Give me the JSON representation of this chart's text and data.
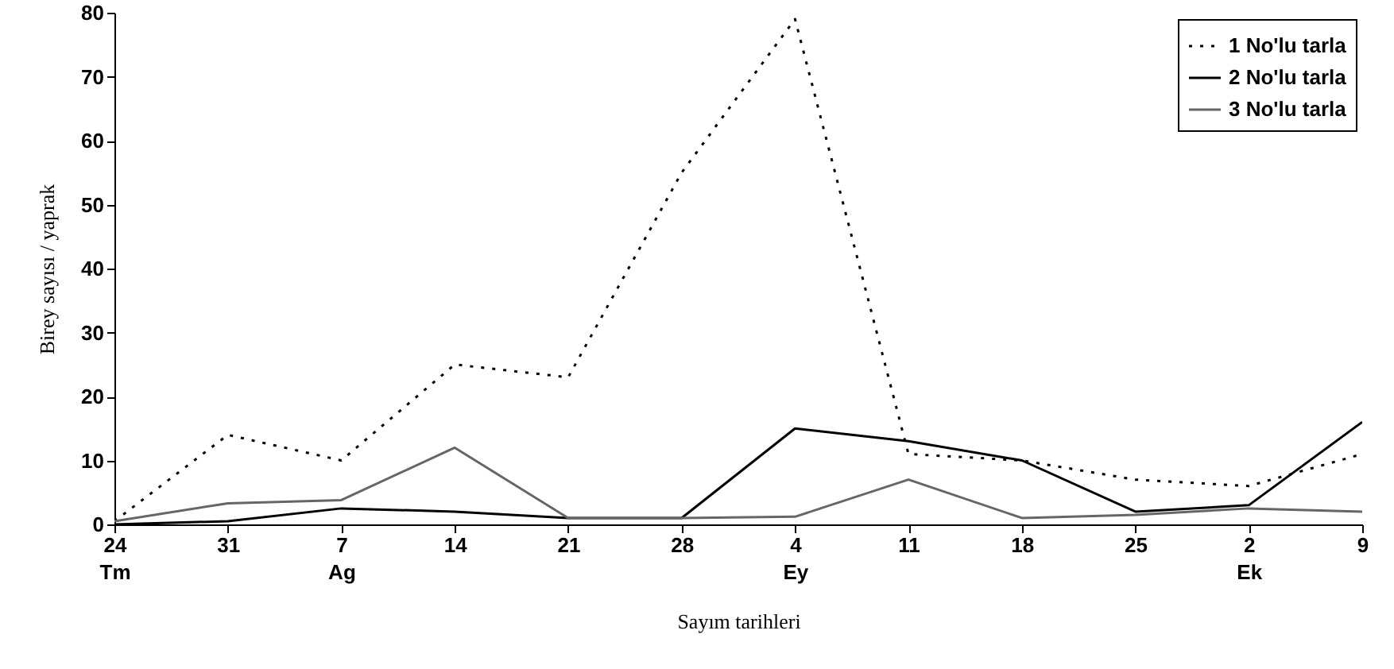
{
  "chart_data": {
    "type": "line",
    "xlabel": "Sayım tarihleri",
    "ylabel": "Birey sayısı / yaprak",
    "categories": [
      "24\nTm",
      "31",
      "7\nAg",
      "14",
      "21",
      "28",
      "4\nEy",
      "11",
      "18",
      "25",
      "2\nEk",
      "9"
    ],
    "series": [
      {
        "name": "1 No'lu tarla",
        "color": "#000000",
        "line_style": "dotted",
        "values": [
          0.5,
          14,
          10,
          25,
          23,
          55,
          79,
          11,
          10,
          7,
          6,
          11
        ]
      },
      {
        "name": "2 No'lu tarla",
        "color": "#000000",
        "line_style": "solid",
        "values": [
          0,
          0.5,
          2.5,
          2,
          1,
          1,
          15,
          13,
          10,
          2,
          3,
          16
        ]
      },
      {
        "name": "3 No'lu tarla",
        "color": "#666666",
        "line_style": "solid",
        "values": [
          0.5,
          3.3,
          3.8,
          12,
          1,
          1,
          1.2,
          7,
          1,
          1.5,
          2.5,
          2
        ]
      }
    ],
    "ylim": [
      0,
      80
    ],
    "yticks": [
      0,
      10,
      20,
      30,
      40,
      50,
      60,
      70,
      80
    ],
    "grid": false,
    "legend": "top right",
    "marker": "none"
  }
}
